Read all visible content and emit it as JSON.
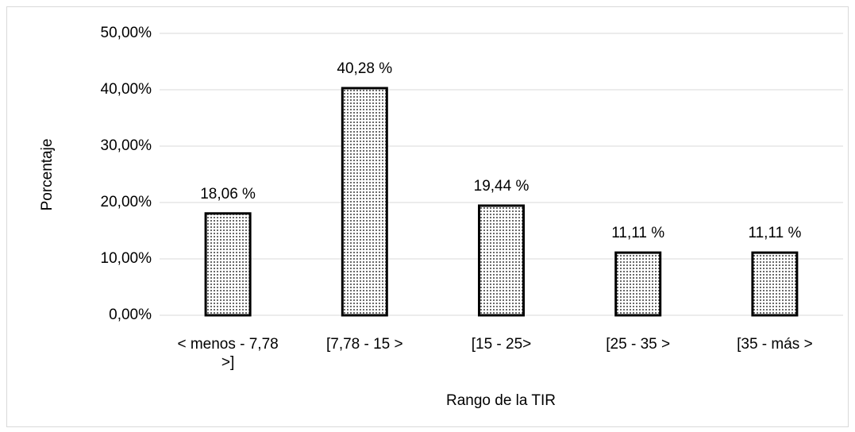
{
  "chart_data": {
    "type": "bar",
    "categories": [
      "< menos - 7,78 >]",
      "[7,78 - 15 >",
      "[15 - 25>",
      "[25 - 35 >",
      "[35 - más >"
    ],
    "values": [
      18.06,
      40.28,
      19.44,
      11.11,
      11.11
    ],
    "value_labels": [
      "18,06 %",
      "40,28 %",
      "19,44 %",
      "11,11 %",
      "11,11 %"
    ],
    "color": "#000000",
    "ylim": [
      0,
      50
    ],
    "yticks": [
      {
        "value": 0,
        "label": "0,00%"
      },
      {
        "value": 10,
        "label": "10,00%"
      },
      {
        "value": 20,
        "label": "20,00%"
      },
      {
        "value": 30,
        "label": "30,00%"
      },
      {
        "value": 40,
        "label": "40,00%"
      },
      {
        "value": 50,
        "label": "50,00%"
      }
    ],
    "xlabel": "Rango de la TIR",
    "ylabel": "Porcentaje",
    "grid": true
  }
}
